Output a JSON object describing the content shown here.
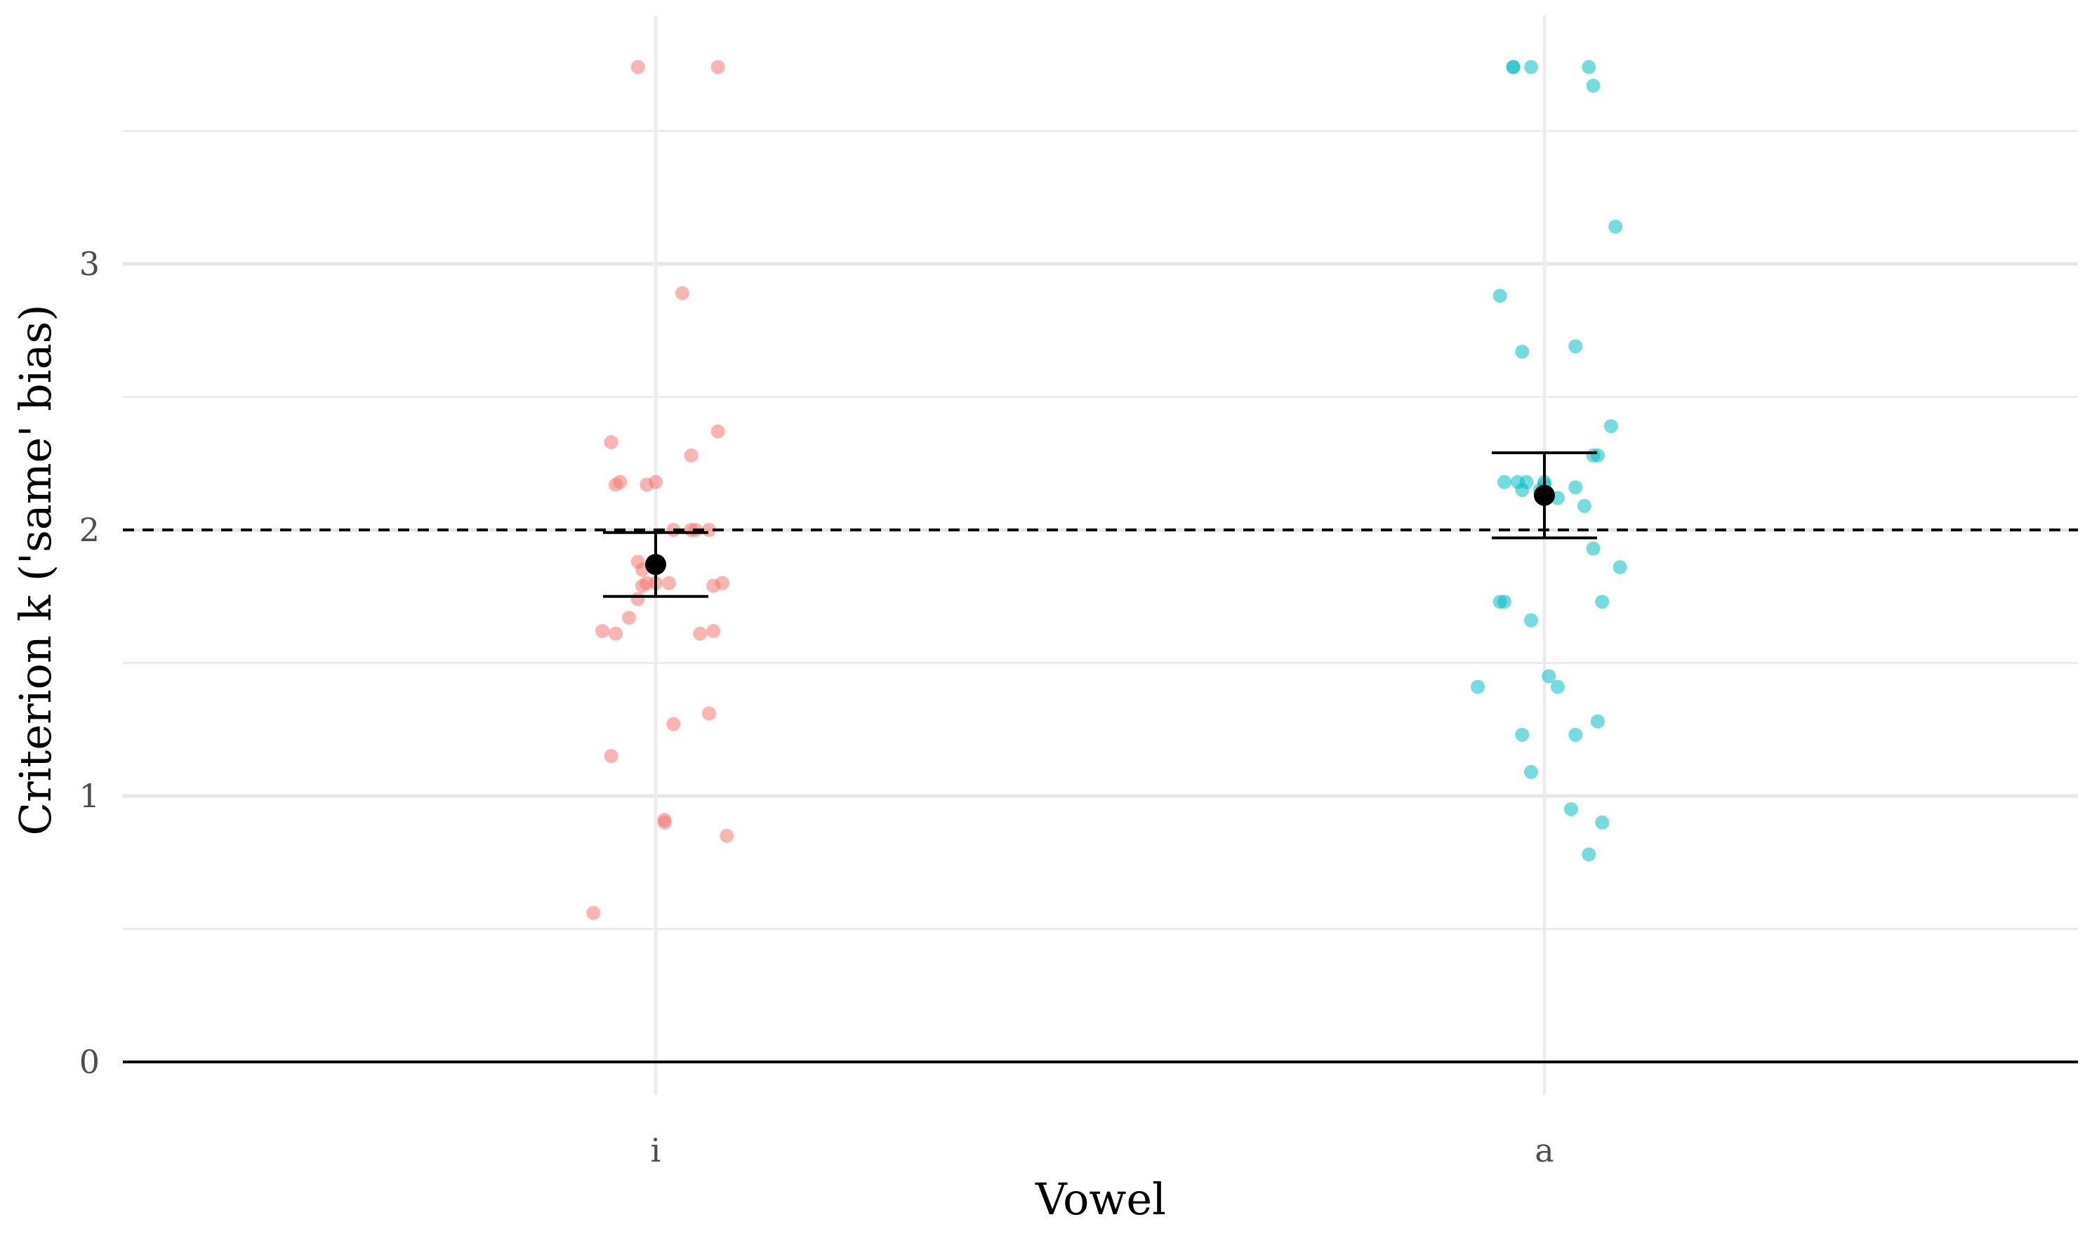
{
  "chart_data": {
    "type": "scatter",
    "xlabel": "Vowel",
    "ylabel": "Criterion k ('same' bias)",
    "categories": [
      "i",
      "a"
    ],
    "y_ticks": [
      0,
      1,
      2,
      3
    ],
    "ylim": [
      -0.18,
      3.92
    ],
    "grid": "on (major and minor horizontal, vertical at categories)",
    "reference_line": {
      "y": 2,
      "style": "dashed"
    },
    "zero_line": {
      "y": 0,
      "style": "solid"
    },
    "series": [
      {
        "category": "i",
        "color": "#F8766D",
        "jitter": [
          -0.07,
          -0.05,
          0.06,
          -0.06,
          0.05,
          -0.03,
          0.0,
          -0.02,
          -0.01,
          -0.015,
          0.02,
          0.01,
          0.08,
          0.065,
          0.06,
          0.04,
          -0.05,
          0.07,
          0.03,
          -0.02,
          0.07,
          0.045,
          0.04,
          -0.045,
          -0.04,
          0.0,
          -0.01,
          0.02,
          0.075,
          -0.015,
          -0.045,
          0.01,
          0.015,
          -0.02,
          0.065
        ],
        "values": [
          0.56,
          1.15,
          1.31,
          1.62,
          1.61,
          1.67,
          1.8,
          1.74,
          1.8,
          1.79,
          1.27,
          0.91,
          0.85,
          1.62,
          2.0,
          2.28,
          2.33,
          2.37,
          2.89,
          3.74,
          3.74,
          2.0,
          2.0,
          2.17,
          2.18,
          2.18,
          2.17,
          2.0,
          1.8,
          1.85,
          1.61,
          0.9,
          1.8,
          1.88,
          1.79
        ]
      },
      {
        "category": "a",
        "color": "#00BFC4",
        "jitter": [
          -0.075,
          -0.05,
          -0.045,
          -0.015,
          -0.025,
          -0.05,
          -0.025,
          0.05,
          0.03,
          0.005,
          0.015,
          0.06,
          0.065,
          0.085,
          0.075,
          0.055,
          0.08,
          -0.015,
          0.035,
          0.0,
          0.015,
          -0.005,
          0.045,
          0.035,
          -0.035,
          -0.015,
          -0.02,
          -0.045,
          0.035,
          0.05,
          0.055,
          -0.035,
          -0.025,
          -0.03,
          0.0,
          0.055,
          0.06,
          0.065
        ],
        "values": [
          1.41,
          1.73,
          1.73,
          1.09,
          1.23,
          2.88,
          2.67,
          0.78,
          0.95,
          1.45,
          1.41,
          1.28,
          0.9,
          1.86,
          2.39,
          1.93,
          3.14,
          1.66,
          2.69,
          2.18,
          2.12,
          2.15,
          2.09,
          1.23,
          3.74,
          3.74,
          2.18,
          2.18,
          2.16,
          3.74,
          3.67,
          3.74,
          2.15,
          2.18,
          2.17,
          2.28,
          2.28,
          1.73
        ]
      }
    ],
    "summary": [
      {
        "category": "i",
        "mean": 1.87,
        "ci_low": 1.75,
        "ci_high": 1.99
      },
      {
        "category": "a",
        "mean": 2.13,
        "ci_low": 1.97,
        "ci_high": 2.29
      }
    ]
  }
}
